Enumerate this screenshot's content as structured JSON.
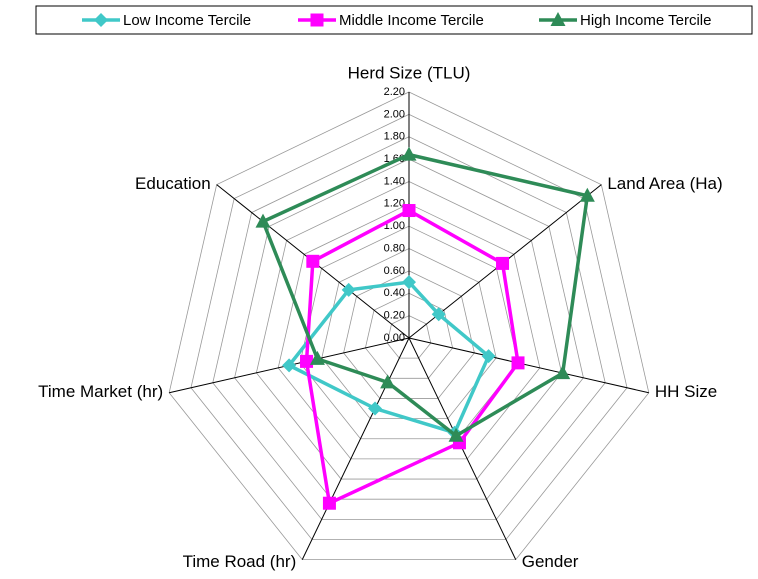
{
  "chart_data": {
    "type": "radar",
    "categories": [
      "Herd Size (TLU)",
      "Land Area (Ha)",
      "HH Size",
      "Gender",
      "Time Road (hr)",
      "Time Market (hr)",
      "Education"
    ],
    "series": [
      {
        "name": "Low Income Tercile",
        "color": "#40c8c8",
        "marker": "diamond",
        "values": [
          0.5,
          0.34,
          0.73,
          0.94,
          0.7,
          1.1,
          0.69
        ]
      },
      {
        "name": "Middle Income Tercile",
        "color": "#ff00ff",
        "marker": "square",
        "values": [
          1.14,
          1.07,
          1.0,
          1.04,
          1.64,
          0.94,
          1.1
        ]
      },
      {
        "name": "High Income Tercile",
        "color": "#2e8b57",
        "marker": "triangle",
        "values": [
          1.64,
          2.04,
          1.41,
          0.97,
          0.44,
          0.84,
          1.67
        ]
      }
    ],
    "ylim": [
      0,
      2.2
    ],
    "yticks": [
      {
        "value": 0,
        "label": "0.00"
      },
      {
        "value": 0.2,
        "label": "0.20"
      },
      {
        "value": 0.4,
        "label": "0.40"
      },
      {
        "value": 0.6,
        "label": "0.60"
      },
      {
        "value": 0.8,
        "label": "0.80"
      },
      {
        "value": 1.0,
        "label": "1.00"
      },
      {
        "value": 1.2,
        "label": "1.20"
      },
      {
        "value": 1.4,
        "label": "1.40"
      },
      {
        "value": 1.6,
        "label": "1.60"
      },
      {
        "value": 1.8,
        "label": "1.80"
      },
      {
        "value": 2.0,
        "label": "2.00"
      },
      {
        "value": 2.2,
        "label": "2.20"
      }
    ],
    "grid": true,
    "legend": "top"
  }
}
